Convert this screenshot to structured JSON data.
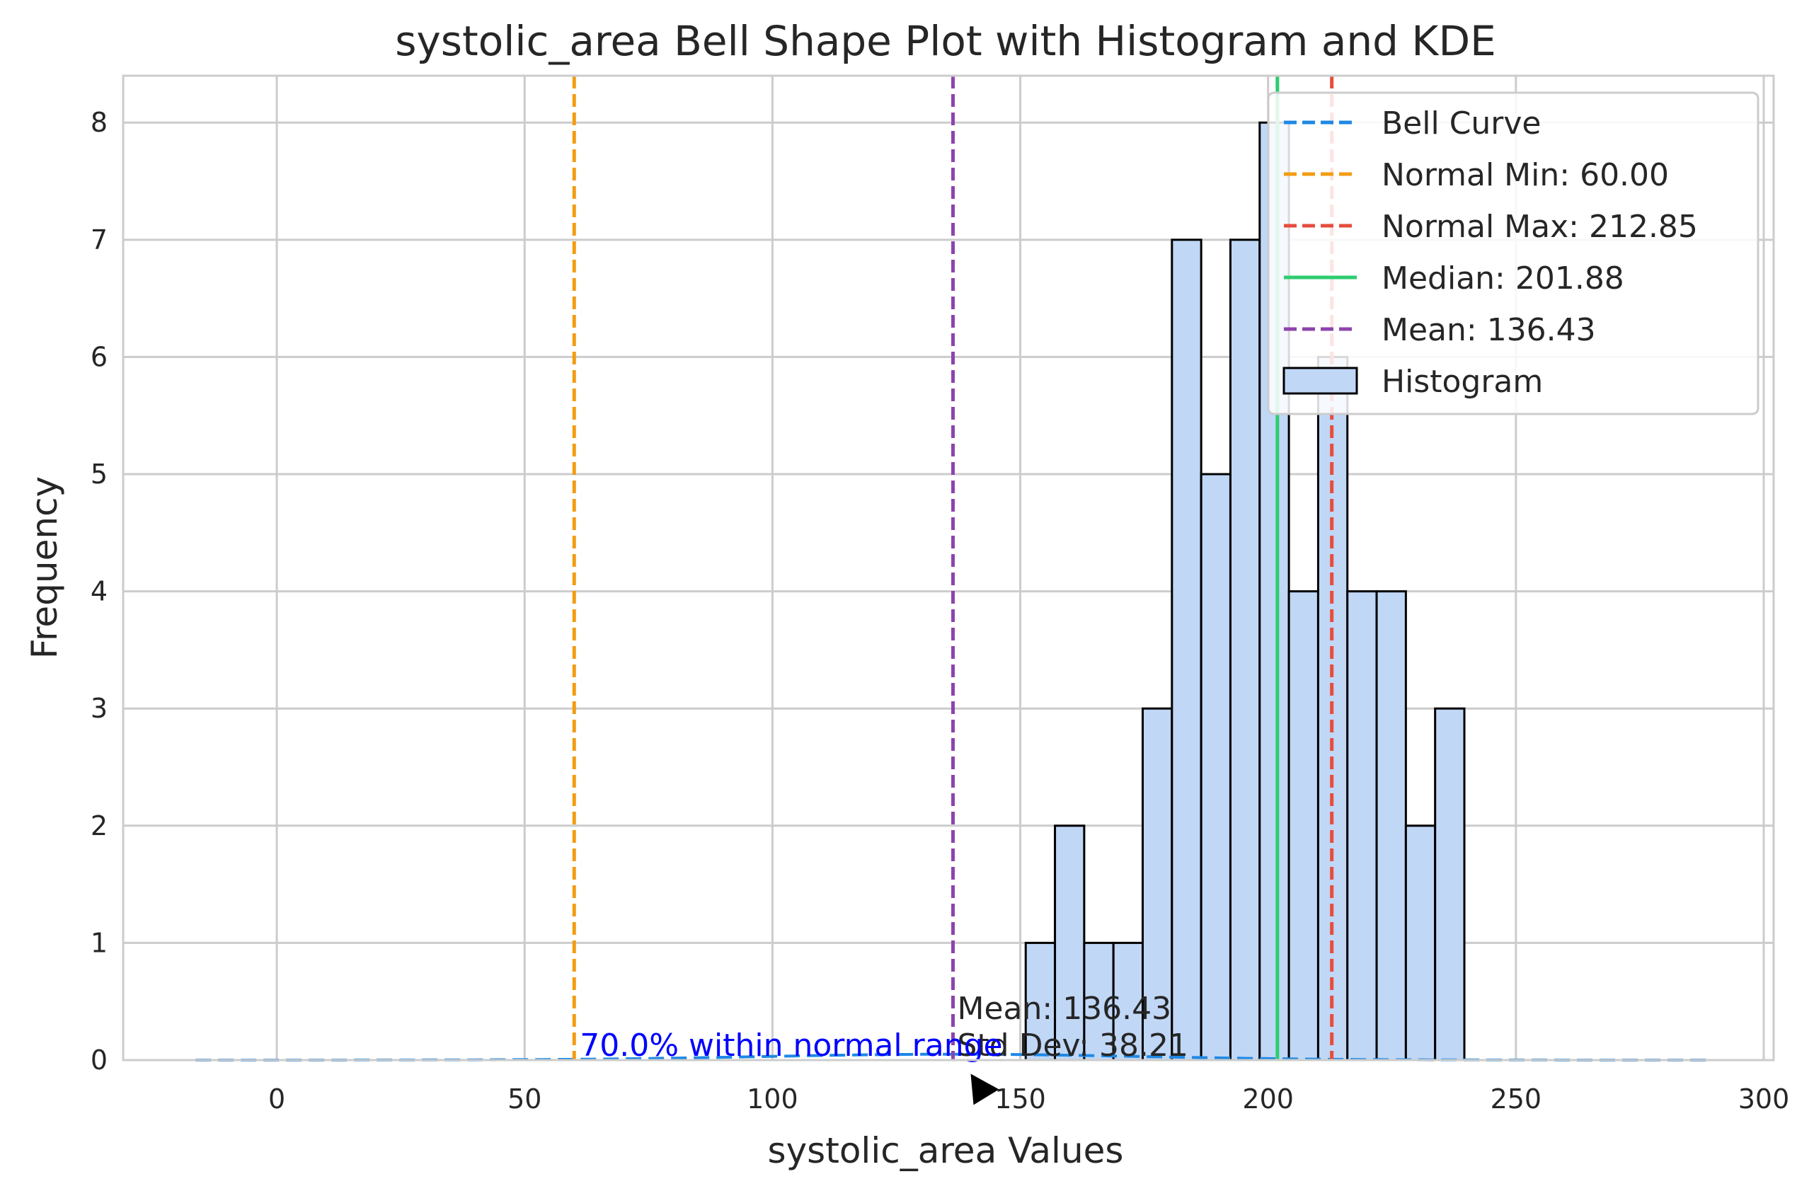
{
  "chart_data": {
    "type": "bar",
    "title": "systolic_area Bell Shape Plot with Histogram and KDE",
    "xlabel": "systolic_area Values",
    "ylabel": "Frequency",
    "xlim": [
      -31,
      302
    ],
    "ylim": [
      0,
      8.4
    ],
    "xticks": [
      0,
      50,
      100,
      150,
      200,
      250,
      300
    ],
    "yticks": [
      0,
      1,
      2,
      3,
      4,
      5,
      6,
      7,
      8
    ],
    "grid": true,
    "legend_position": "top-right",
    "histogram": {
      "name": "Histogram",
      "color": "#c0d7f6",
      "edge_color": "#000000",
      "bins": [
        {
          "x0": 151.1,
          "x1": 157.0,
          "count": 1
        },
        {
          "x0": 157.0,
          "x1": 162.9,
          "count": 2
        },
        {
          "x0": 162.9,
          "x1": 168.8,
          "count": 1
        },
        {
          "x0": 168.8,
          "x1": 174.7,
          "count": 1
        },
        {
          "x0": 174.7,
          "x1": 180.6,
          "count": 3
        },
        {
          "x0": 180.6,
          "x1": 186.5,
          "count": 7
        },
        {
          "x0": 186.5,
          "x1": 192.4,
          "count": 5
        },
        {
          "x0": 192.4,
          "x1": 198.3,
          "count": 7
        },
        {
          "x0": 198.3,
          "x1": 204.2,
          "count": 8
        },
        {
          "x0": 204.2,
          "x1": 210.1,
          "count": 4
        },
        {
          "x0": 210.1,
          "x1": 216.0,
          "count": 6
        },
        {
          "x0": 216.0,
          "x1": 221.9,
          "count": 4
        },
        {
          "x0": 221.9,
          "x1": 227.8,
          "count": 4
        },
        {
          "x0": 227.8,
          "x1": 233.7,
          "count": 2
        },
        {
          "x0": 233.7,
          "x1": 239.6,
          "count": 3
        }
      ]
    },
    "bell_curve": {
      "name": "Bell Curve",
      "color": "#1e88e5",
      "mean": 136.43,
      "std": 38.21,
      "peak_height": 0.05,
      "x_range": [
        -16.4,
        289.3
      ]
    },
    "vlines": [
      {
        "name": "Normal Min: 60.00",
        "x": 60.0,
        "color": "#f39c12",
        "dashed": true
      },
      {
        "name": "Normal Max: 212.85",
        "x": 212.85,
        "color": "#e74c3c",
        "dashed": true
      },
      {
        "name": "Median: 201.88",
        "x": 201.88,
        "color": "#2ecc71",
        "dashed": false
      },
      {
        "name": "Mean: 136.43",
        "x": 136.43,
        "color": "#8e44ad",
        "dashed": true
      }
    ],
    "annotations": {
      "mean_text": "Mean: 136.43",
      "std_text": "Std Dev: 38.21",
      "pct_text": "70.0% within normal range",
      "arrow_tip": [
        140,
        -0.25
      ]
    },
    "legend": [
      {
        "label": "Bell Curve",
        "kind": "dashed",
        "color": "#1e88e5"
      },
      {
        "label": "Normal Min: 60.00",
        "kind": "dashed",
        "color": "#f39c12"
      },
      {
        "label": "Normal Max: 212.85",
        "kind": "dashed",
        "color": "#e74c3c"
      },
      {
        "label": "Median: 201.88",
        "kind": "solid",
        "color": "#2ecc71"
      },
      {
        "label": "Mean: 136.43",
        "kind": "dashed",
        "color": "#8e44ad"
      },
      {
        "label": "Histogram",
        "kind": "patch",
        "color": "#c0d7f6"
      }
    ]
  }
}
